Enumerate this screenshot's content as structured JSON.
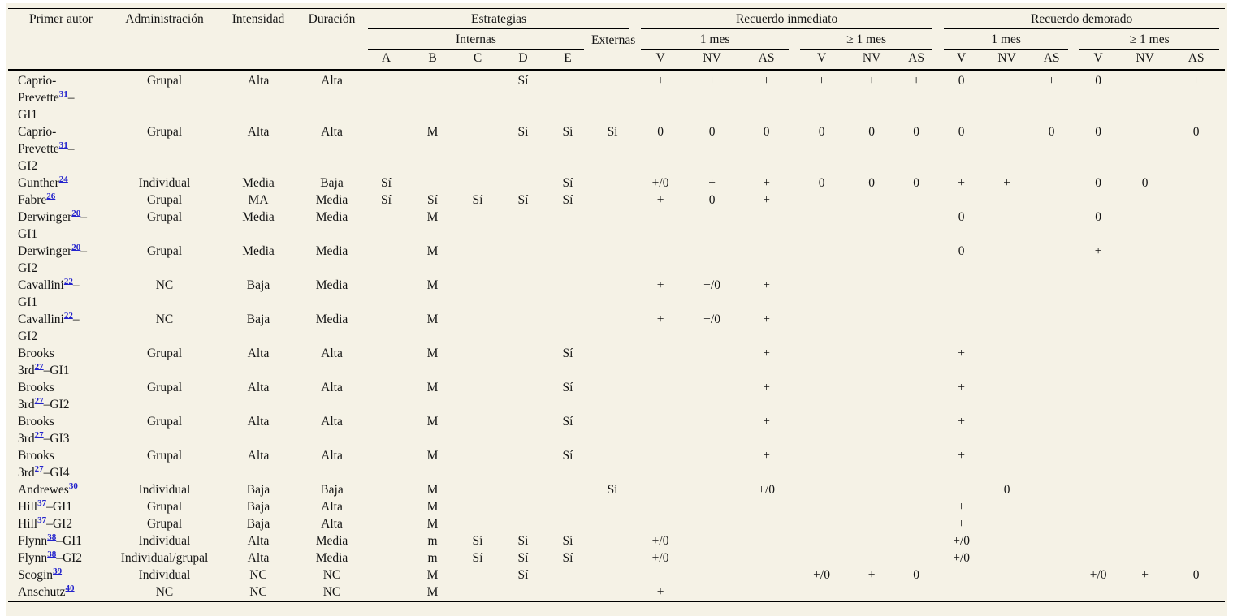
{
  "table": {
    "header": {
      "primer_autor": "Primer autor",
      "administracion": "Administración",
      "intensidad": "Intensidad",
      "duracion": "Duración",
      "estrategias": "Estrategias",
      "internas": "Internas",
      "externas": "Externas",
      "recuerdo_inmediato": "Recuerdo inmediato",
      "recuerdo_demorado": "Recuerdo demorado",
      "mes_1": "1 mes",
      "mes_1_plus": "≥ 1 mes",
      "strategy_letters": [
        "A",
        "B",
        "C",
        "D",
        "E"
      ],
      "outcome_cols": [
        "V",
        "NV",
        "AS"
      ]
    },
    "rows": [
      {
        "author": {
          "before": "Caprio-\nPrevette",
          "ref": "31",
          "after": "–\nGI1"
        },
        "admin": "Grupal",
        "int": "Alta",
        "dur": "Alta",
        "cells": [
          "",
          "",
          "",
          "Sí",
          "",
          "",
          "+",
          "+",
          "+",
          "+",
          "+",
          "+",
          "0",
          "",
          "+",
          "0",
          "",
          "+"
        ]
      },
      {
        "author": {
          "before": "Caprio-\nPrevette",
          "ref": "31",
          "after": "–\nGI2"
        },
        "admin": "Grupal",
        "int": "Alta",
        "dur": "Alta",
        "cells": [
          "",
          "M",
          "",
          "Sí",
          "Sí",
          "Sí",
          "0",
          "0",
          "0",
          "0",
          "0",
          "0",
          "0",
          "",
          "0",
          "0",
          "",
          "0"
        ]
      },
      {
        "author": {
          "before": "Gunther",
          "ref": "24",
          "after": ""
        },
        "admin": "Individual",
        "int": "Media",
        "dur": "Baja",
        "cells": [
          "Sí",
          "",
          "",
          "",
          "Sí",
          "",
          "+/0",
          "+",
          "+",
          "0",
          "0",
          "0",
          "+",
          "+",
          "",
          "0",
          "0",
          ""
        ]
      },
      {
        "author": {
          "before": "Fabre",
          "ref": "26",
          "after": ""
        },
        "admin": "Grupal",
        "int": "MA",
        "dur": "Media",
        "cells": [
          "Sí",
          "Sí",
          "Sí",
          "Sí",
          "Sí",
          "",
          "+",
          "0",
          "+",
          "",
          "",
          "",
          "",
          "",
          "",
          "",
          "",
          ""
        ]
      },
      {
        "author": {
          "before": "Derwinger",
          "ref": "20",
          "after": "–\nGI1"
        },
        "admin": "Grupal",
        "int": "Media",
        "dur": "Media",
        "cells": [
          "",
          "M",
          "",
          "",
          "",
          "",
          "",
          "",
          "",
          "",
          "",
          "",
          "0",
          "",
          "",
          "0",
          "",
          ""
        ]
      },
      {
        "author": {
          "before": "Derwinger",
          "ref": "20",
          "after": "–\nGI2"
        },
        "admin": "Grupal",
        "int": "Media",
        "dur": "Media",
        "cells": [
          "",
          "M",
          "",
          "",
          "",
          "",
          "",
          "",
          "",
          "",
          "",
          "",
          "0",
          "",
          "",
          "+",
          "",
          ""
        ]
      },
      {
        "author": {
          "before": "Cavallini",
          "ref": "22",
          "after": "–\nGI1"
        },
        "admin": "NC",
        "int": "Baja",
        "dur": "Media",
        "cells": [
          "",
          "M",
          "",
          "",
          "",
          "",
          "+",
          "+/0",
          "+",
          "",
          "",
          "",
          "",
          "",
          "",
          "",
          "",
          ""
        ]
      },
      {
        "author": {
          "before": "Cavallini",
          "ref": "22",
          "after": "–\nGI2"
        },
        "admin": "NC",
        "int": "Baja",
        "dur": "Media",
        "cells": [
          "",
          "M",
          "",
          "",
          "",
          "",
          "+",
          "+/0",
          "+",
          "",
          "",
          "",
          "",
          "",
          "",
          "",
          "",
          ""
        ]
      },
      {
        "author": {
          "before": "Brooks\n3rd",
          "ref": "27",
          "after": "–GI1"
        },
        "admin": "Grupal",
        "int": "Alta",
        "dur": "Alta",
        "cells": [
          "",
          "M",
          "",
          "",
          "Sí",
          "",
          "",
          "",
          "+",
          "",
          "",
          "",
          "+",
          "",
          "",
          "",
          "",
          ""
        ]
      },
      {
        "author": {
          "before": "Brooks\n3rd",
          "ref": "27",
          "after": "–GI2"
        },
        "admin": "Grupal",
        "int": "Alta",
        "dur": "Alta",
        "cells": [
          "",
          "M",
          "",
          "",
          "Sí",
          "",
          "",
          "",
          "+",
          "",
          "",
          "",
          "+",
          "",
          "",
          "",
          "",
          ""
        ]
      },
      {
        "author": {
          "before": "Brooks\n3rd",
          "ref": "27",
          "after": "–GI3"
        },
        "admin": "Grupal",
        "int": "Alta",
        "dur": "Alta",
        "cells": [
          "",
          "M",
          "",
          "",
          "Sí",
          "",
          "",
          "",
          "+",
          "",
          "",
          "",
          "+",
          "",
          "",
          "",
          "",
          ""
        ]
      },
      {
        "author": {
          "before": "Brooks\n3rd",
          "ref": "27",
          "after": "–GI4"
        },
        "admin": "Grupal",
        "int": "Alta",
        "dur": "Alta",
        "cells": [
          "",
          "M",
          "",
          "",
          "Sí",
          "",
          "",
          "",
          "+",
          "",
          "",
          "",
          "+",
          "",
          "",
          "",
          "",
          ""
        ]
      },
      {
        "author": {
          "before": "Andrewes",
          "ref": "30",
          "after": ""
        },
        "admin": "Individual",
        "int": "Baja",
        "dur": "Baja",
        "cells": [
          "",
          "M",
          "",
          "",
          "",
          "Sí",
          "",
          "",
          "+/0",
          "",
          "",
          "",
          "",
          "0",
          "",
          "",
          "",
          ""
        ]
      },
      {
        "author": {
          "before": "Hill",
          "ref": "37",
          "after": "–GI1"
        },
        "admin": "Grupal",
        "int": "Baja",
        "dur": "Alta",
        "cells": [
          "",
          "M",
          "",
          "",
          "",
          "",
          "",
          "",
          "",
          "",
          "",
          "",
          "+",
          "",
          "",
          "",
          "",
          ""
        ]
      },
      {
        "author": {
          "before": "Hill",
          "ref": "37",
          "after": "–GI2"
        },
        "admin": "Grupal",
        "int": "Baja",
        "dur": "Alta",
        "cells": [
          "",
          "M",
          "",
          "",
          "",
          "",
          "",
          "",
          "",
          "",
          "",
          "",
          "+",
          "",
          "",
          "",
          "",
          ""
        ]
      },
      {
        "author": {
          "before": "Flynn",
          "ref": "38",
          "after": "–GI1"
        },
        "admin": "Individual",
        "int": "Alta",
        "dur": "Media",
        "cells": [
          "",
          "m",
          "Sí",
          "Sí",
          "Sí",
          "",
          "+/0",
          "",
          "",
          "",
          "",
          "",
          "+/0",
          "",
          "",
          "",
          "",
          ""
        ]
      },
      {
        "author": {
          "before": "Flynn",
          "ref": "38",
          "after": "–GI2"
        },
        "admin": "Individual/grupal",
        "int": "Alta",
        "dur": "Media",
        "cells": [
          "",
          "m",
          "Sí",
          "Sí",
          "Sí",
          "",
          "+/0",
          "",
          "",
          "",
          "",
          "",
          "+/0",
          "",
          "",
          "",
          "",
          ""
        ]
      },
      {
        "author": {
          "before": "Scogin",
          "ref": "39",
          "after": ""
        },
        "admin": "Individual",
        "int": "NC",
        "dur": "NC",
        "cells": [
          "",
          "M",
          "",
          "Sí",
          "",
          "",
          "",
          "",
          "",
          "+/0",
          "+",
          "0",
          "",
          "",
          "",
          "+/0",
          "+",
          "0"
        ]
      },
      {
        "author": {
          "before": "Anschutz",
          "ref": "40",
          "after": ""
        },
        "admin": "NC",
        "int": "NC",
        "dur": "NC",
        "cells": [
          "",
          "M",
          "",
          "",
          "",
          "",
          "+",
          "",
          "",
          "",
          "",
          "",
          "",
          "",
          "",
          "",
          "",
          ""
        ]
      }
    ]
  }
}
